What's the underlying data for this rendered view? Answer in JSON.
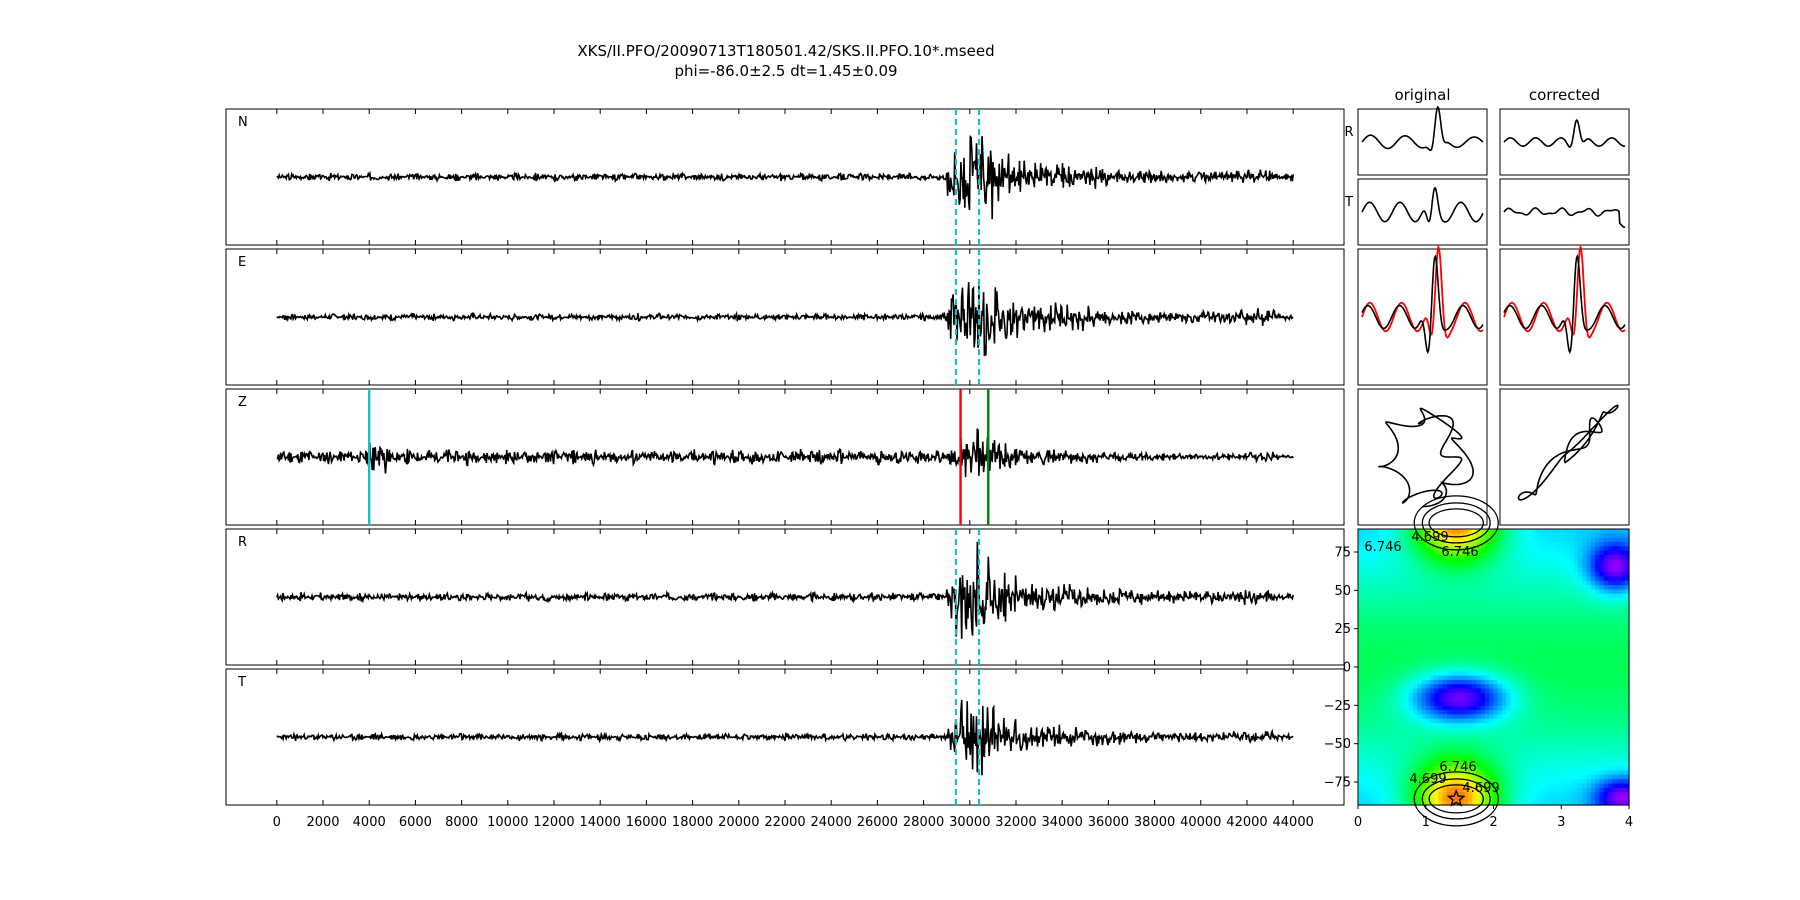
{
  "title": {
    "line1": "XKS/II.PFO/20090713T180501.42/SKS.II.PFO.10*.mseed",
    "line2": "phi=-86.0±2.5 dt=1.45±0.09"
  },
  "chart_data": [
    {
      "type": "line",
      "panel": "waveforms",
      "x_ticks": [
        0,
        2000,
        4000,
        6000,
        8000,
        10000,
        12000,
        14000,
        16000,
        18000,
        20000,
        22000,
        24000,
        26000,
        28000,
        30000,
        32000,
        34000,
        36000,
        38000,
        40000,
        42000,
        44000
      ],
      "xlim": [
        -2200,
        46200
      ],
      "trace_range": [
        0,
        44000
      ],
      "channels": [
        {
          "label": "N",
          "noise": 0.22,
          "burst": 1.0,
          "seed": 3
        },
        {
          "label": "E",
          "noise": 0.2,
          "burst": 1.05,
          "seed": 7
        },
        {
          "label": "Z",
          "noise": 0.45,
          "burst": 0.55,
          "seed": 11
        },
        {
          "label": "R",
          "noise": 0.25,
          "burst": 1.05,
          "seed": 17
        },
        {
          "label": "T",
          "noise": 0.22,
          "burst": 0.85,
          "seed": 23
        }
      ],
      "window_lines": {
        "color": "#17becf",
        "x": [
          29400,
          30400
        ],
        "channels": [
          "N",
          "E",
          "R",
          "T"
        ]
      },
      "phase_markers": [
        {
          "channel": "Z",
          "x": 4000,
          "color": "#17becf"
        },
        {
          "channel": "Z",
          "x": 29600,
          "color": "#ff0000"
        },
        {
          "channel": "Z",
          "x": 30800,
          "color": "#008000"
        }
      ]
    },
    {
      "type": "line",
      "panel": "particle-motion",
      "columns": [
        "original",
        "corrected"
      ],
      "row_labels": [
        "R",
        "T"
      ],
      "overlay_color": "#ff0000"
    },
    {
      "type": "heatmap",
      "panel": "error-surface",
      "x_ticks": [
        0,
        1,
        2,
        3,
        4
      ],
      "xlim": [
        0,
        4
      ],
      "y_ticks": [
        75,
        50,
        25,
        0,
        -25,
        -50,
        -75
      ],
      "ylim": [
        -90,
        90
      ],
      "contour_labels": [
        "4.699",
        "6.746",
        "6.746",
        "4.699",
        "4.699",
        "6.746"
      ],
      "best_fit": {
        "dt": 1.45,
        "phi": -86.0
      },
      "colormap": "hsv"
    }
  ]
}
